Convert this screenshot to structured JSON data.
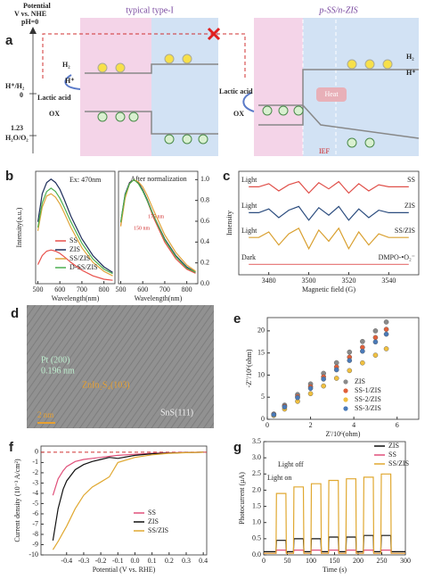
{
  "panel_labels": [
    "a",
    "b",
    "c",
    "d",
    "e",
    "f",
    "g"
  ],
  "diagram": {
    "axis_title": [
      "Potential",
      "V vs. NHE",
      "pH=0"
    ],
    "levels": [
      "H⁺/H₂",
      "0",
      "1.23",
      "H₂O/O₂"
    ],
    "left_title": "typical type-I",
    "right_title": "p-SS/n-ZIS",
    "left_labels": [
      "H₂",
      "H⁺",
      "Lactic acid",
      "OX"
    ],
    "right_labels": [
      "H₂",
      "H⁺",
      "Lactic acid",
      "OX"
    ],
    "heat": "Heat",
    "field": "IEF"
  },
  "tem_image": {
    "labels": [
      "Pt (200)",
      "0.196 nm",
      "ZnIn₂S₄(103)",
      "SnS(111)"
    ],
    "scale_bar": "2 nm"
  },
  "chart_data": [
    {
      "type": "line",
      "annotation": "Ex: 470nm",
      "xlabel": "Wavelength(nm)",
      "ylabel": "Intensity(a.u.)",
      "x": [
        500,
        520,
        540,
        560,
        580,
        600,
        620,
        650,
        700,
        750,
        800,
        840
      ],
      "xlim": [
        490,
        850
      ],
      "xticks": [
        500,
        600,
        700,
        800
      ],
      "ylim": [
        0,
        1
      ],
      "series": [
        {
          "name": "SS",
          "color": "#e8504a",
          "values": [
            0.17,
            0.25,
            0.29,
            0.3,
            0.29,
            0.27,
            0.24,
            0.19,
            0.12,
            0.07,
            0.04,
            0.03
          ]
        },
        {
          "name": "ZIS",
          "color": "#1f2f5c",
          "values": [
            0.55,
            0.8,
            0.9,
            0.93,
            0.9,
            0.84,
            0.75,
            0.6,
            0.4,
            0.25,
            0.15,
            0.1
          ]
        },
        {
          "name": "SS/ZIS",
          "color": "#e0a53a",
          "values": [
            0.47,
            0.68,
            0.78,
            0.8,
            0.77,
            0.71,
            0.63,
            0.5,
            0.32,
            0.19,
            0.11,
            0.07
          ]
        },
        {
          "name": "D-SS/ZIS",
          "color": "#4caf50",
          "values": [
            0.5,
            0.72,
            0.82,
            0.85,
            0.82,
            0.76,
            0.68,
            0.55,
            0.36,
            0.22,
            0.13,
            0.09
          ]
        }
      ]
    },
    {
      "type": "line",
      "title": "After normalization",
      "annotations": [
        "175 nm",
        "150 nm"
      ],
      "xlabel": "Wavelength(nm)",
      "x": [
        500,
        520,
        540,
        560,
        580,
        600,
        620,
        650,
        700,
        750,
        800,
        840
      ],
      "xlim": [
        490,
        850
      ],
      "xticks": [
        500,
        600,
        700,
        800
      ],
      "ylim": [
        0,
        1.08
      ],
      "yticks": [
        {
          "value": 0,
          "label": "0.0"
        },
        0.2,
        0.4,
        0.6,
        0.8,
        {
          "value": 1,
          "label": "1.0"
        }
      ],
      "series": [
        {
          "name": "SS",
          "color": "#e8504a",
          "values": [
            0.56,
            0.83,
            0.97,
            1.0,
            0.97,
            0.9,
            0.8,
            0.63,
            0.4,
            0.24,
            0.14,
            0.1
          ]
        },
        {
          "name": "ZIS",
          "color": "#1f2f5c",
          "values": [
            0.59,
            0.86,
            0.97,
            1.0,
            0.97,
            0.9,
            0.81,
            0.65,
            0.43,
            0.27,
            0.16,
            0.11
          ]
        },
        {
          "name": "SS/ZIS",
          "color": "#e0a53a",
          "values": [
            0.55,
            0.82,
            0.96,
            1.0,
            0.98,
            0.93,
            0.85,
            0.7,
            0.47,
            0.3,
            0.18,
            0.12
          ]
        },
        {
          "name": "D-SS/ZIS",
          "color": "#4caf50",
          "values": [
            0.59,
            0.85,
            0.96,
            1.0,
            0.96,
            0.89,
            0.8,
            0.65,
            0.42,
            0.26,
            0.15,
            0.11
          ]
        }
      ]
    },
    {
      "type": "line",
      "xlabel": "Magnetic field (G)",
      "ylabel": "Intensity",
      "x": [
        3470,
        3475,
        3480,
        3485,
        3490,
        3495,
        3500,
        3505,
        3510,
        3515,
        3520,
        3525,
        3530,
        3535,
        3540,
        3545,
        3550
      ],
      "xlim": [
        3465,
        3555
      ],
      "xticks": [
        3480,
        3500,
        3520,
        3540
      ],
      "ylim": [
        0,
        10
      ],
      "series": [
        {
          "name": "SS",
          "condition": "Light",
          "color": "#e0504a",
          "values": [
            8.5,
            8.5,
            8.8,
            8.1,
            8.7,
            9.0,
            7.9,
            8.9,
            8.3,
            9.0,
            7.9,
            8.8,
            8.1,
            8.7,
            8.5,
            8.5,
            8.5
          ]
        },
        {
          "name": "ZIS",
          "condition": "Light",
          "color": "#2b4c7e",
          "values": [
            6,
            6,
            6.36,
            5.52,
            6.24,
            6.6,
            5.28,
            6.48,
            5.76,
            6.6,
            5.28,
            6.36,
            5.52,
            6.24,
            6,
            6,
            6
          ]
        },
        {
          "name": "SS/ZIS",
          "condition": "Light",
          "color": "#d9a030",
          "values": [
            3.6,
            3.6,
            4.14,
            2.88,
            3.96,
            4.5,
            2.52,
            4.32,
            3.24,
            4.5,
            2.52,
            4.14,
            2.88,
            3.96,
            3.6,
            3.6,
            3.6
          ]
        },
        {
          "name": "DMPO-•O₂⁻",
          "condition": "Dark",
          "color": "#e88080",
          "values": [
            1,
            1,
            1,
            1,
            1,
            1,
            1,
            1,
            1,
            1,
            1,
            1,
            1,
            1,
            1,
            1,
            1
          ]
        }
      ]
    },
    {
      "type": "scatter",
      "xlabel": "Z'/10⁶(ohm)",
      "ylabel": "-Z''/10⁶(ohm)",
      "x": [
        0.3,
        0.8,
        1.4,
        2.0,
        2.6,
        3.2,
        3.8,
        4.4,
        5.0,
        5.5
      ],
      "xlim": [
        0,
        7
      ],
      "xticks": [
        0,
        2,
        4,
        6
      ],
      "ylim": [
        0,
        23
      ],
      "yticks": [
        0,
        5,
        10,
        15,
        20
      ],
      "series": [
        {
          "name": "ZIS",
          "color": "#8a8a8a",
          "values": [
            1.2,
            3.2,
            5.6,
            8.0,
            10.4,
            12.8,
            15.2,
            17.6,
            20.0,
            22.0
          ]
        },
        {
          "name": "SS-1/ZIS",
          "color": "#e0603a",
          "values": [
            1.11,
            2.96,
            5.18,
            7.4,
            9.62,
            11.84,
            14.06,
            16.28,
            18.5,
            20.35
          ]
        },
        {
          "name": "SS-2/ZIS",
          "color": "#f0c040",
          "values": [
            0.87,
            2.32,
            4.06,
            5.8,
            7.54,
            9.28,
            11.02,
            12.76,
            14.5,
            15.95
          ]
        },
        {
          "name": "SS-3/ZIS",
          "color": "#4a7ab8",
          "values": [
            1.05,
            2.8,
            4.9,
            7,
            9.1,
            11.2,
            13.3,
            15.4,
            17.5,
            19.25
          ]
        }
      ]
    },
    {
      "type": "line",
      "xlabel": "Potential (V vs. RHE)",
      "ylabel": "Current density (10⁻³ A/cm²)",
      "hline": 0,
      "x": [
        -0.48,
        -0.45,
        -0.42,
        -0.4,
        -0.35,
        -0.3,
        -0.25,
        -0.2,
        -0.15,
        -0.1,
        0,
        0.1,
        0.2,
        0.3,
        0.4
      ],
      "xlim": [
        -0.55,
        0.42
      ],
      "xticks": [
        -0.4,
        -0.3,
        -0.2,
        -0.1,
        {
          "value": 0,
          "label": "0.0"
        },
        0.1,
        0.2,
        0.3,
        0.4
      ],
      "ylim": [
        -10,
        0.6
      ],
      "yticks": [
        0,
        -1,
        -2,
        -3,
        -4,
        -5,
        -6,
        -7,
        -8,
        -9,
        -10
      ],
      "series": [
        {
          "name": "SS",
          "color": "#e0507a",
          "values": [
            -4.2,
            -2.6,
            -1.8,
            -1.4,
            -0.9,
            -0.7,
            -0.6,
            -0.5,
            -0.4,
            -0.3,
            -0.2,
            -0.1,
            -0.05,
            -0.02,
            0
          ]
        },
        {
          "name": "ZIS",
          "color": "#111111",
          "values": [
            -8.6,
            -5.5,
            -3.6,
            -2.8,
            -1.7,
            -1.2,
            -0.9,
            -0.7,
            -0.5,
            -0.6,
            -0.3,
            -0.15,
            -0.08,
            -0.03,
            0
          ]
        },
        {
          "name": "SS/ZIS",
          "color": "#e0a830",
          "values": [
            -9.5,
            -8.7,
            -7.8,
            -7.2,
            -5.5,
            -4.2,
            -3.4,
            -2.9,
            -2.4,
            -1.0,
            -0.5,
            -0.25,
            -0.1,
            -0.04,
            0
          ]
        }
      ]
    },
    {
      "type": "line",
      "xlabel": "Time (s)",
      "ylabel": "Photocurrent (μA)",
      "annotations": [
        "Light on",
        "Light off"
      ],
      "x": [
        0,
        26,
        27,
        47,
        48,
        63,
        64,
        84,
        85,
        100,
        101,
        121,
        122,
        137,
        138,
        158,
        159,
        174,
        175,
        195,
        196,
        211,
        212,
        232,
        233,
        248,
        249,
        269,
        270,
        300
      ],
      "xlim": [
        0,
        300
      ],
      "xticks": [
        0,
        50,
        100,
        150,
        200,
        250,
        300
      ],
      "ylim": [
        0,
        3.5
      ],
      "yticks": [
        {
          "value": 0,
          "label": "0.0"
        },
        0.5,
        {
          "value": 1,
          "label": "1.0"
        },
        1.5,
        {
          "value": 2,
          "label": "2.0"
        },
        2.5,
        {
          "value": 3,
          "label": "3.0"
        },
        3.5
      ],
      "series": [
        {
          "name": "ZIS",
          "color": "#111111",
          "values": [
            0.1,
            0.1,
            0.45,
            0.45,
            0.1,
            0.1,
            0.5,
            0.5,
            0.1,
            0.1,
            0.5,
            0.5,
            0.1,
            0.1,
            0.55,
            0.55,
            0.1,
            0.1,
            0.55,
            0.55,
            0.1,
            0.1,
            0.6,
            0.6,
            0.1,
            0.1,
            0.6,
            0.6,
            0.1,
            0.1
          ]
        },
        {
          "name": "SS",
          "color": "#e0507a",
          "values": [
            0.05,
            0.05,
            0.15,
            0.15,
            0.05,
            0.05,
            0.15,
            0.15,
            0.05,
            0.05,
            0.15,
            0.15,
            0.05,
            0.05,
            0.15,
            0.15,
            0.05,
            0.05,
            0.15,
            0.15,
            0.05,
            0.05,
            0.15,
            0.15,
            0.05,
            0.05,
            0.15,
            0.15,
            0.05,
            0.05
          ]
        },
        {
          "name": "SS/ZIS",
          "color": "#e0a830",
          "values": [
            0.05,
            0.05,
            1.9,
            1.9,
            0.05,
            0.05,
            2.1,
            2.1,
            0.05,
            0.05,
            2.2,
            2.2,
            0.05,
            0.05,
            2.3,
            2.3,
            0.05,
            0.05,
            2.35,
            2.35,
            0.05,
            0.05,
            2.4,
            2.4,
            0.05,
            0.05,
            2.5,
            2.5,
            0.05,
            0.05
          ]
        }
      ]
    }
  ]
}
